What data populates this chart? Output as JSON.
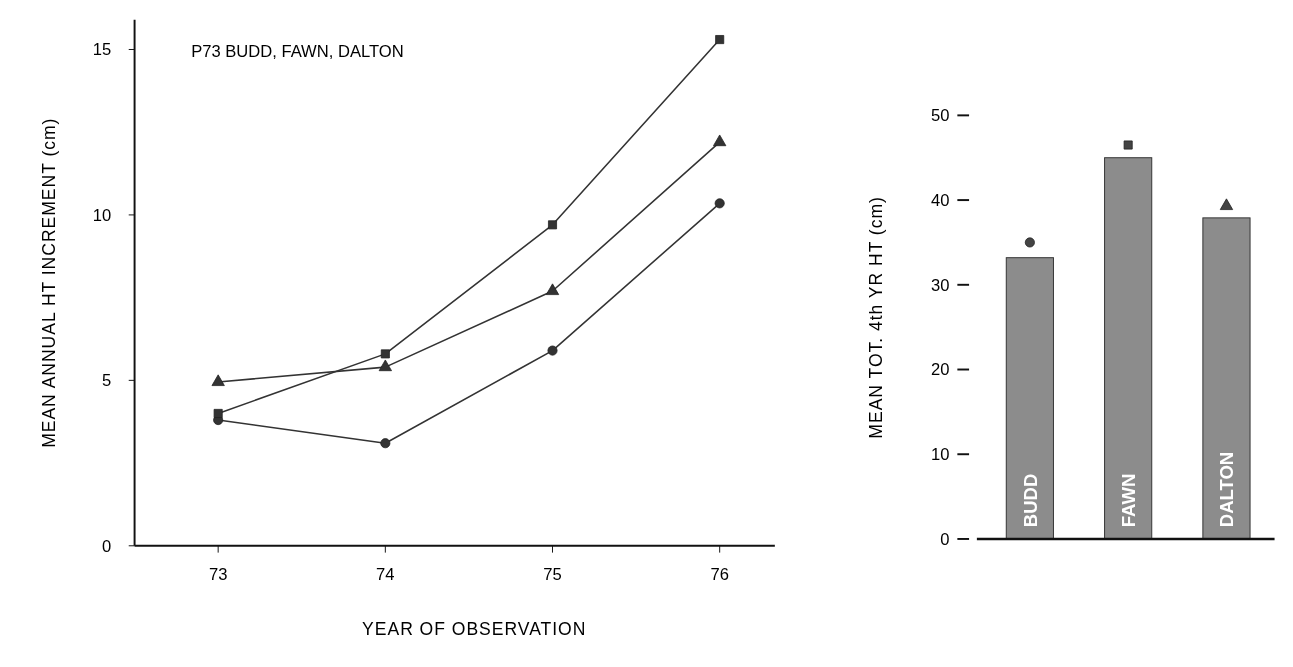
{
  "chart_data": [
    {
      "type": "line",
      "title": "P73 BUDD, FAWN, DALTON",
      "xlabel": "YEAR OF OBSERVATION",
      "ylabel": "MEAN ANNUAL HT INCREMENT (cm)",
      "x": [
        73,
        74,
        75,
        76
      ],
      "xlim": [
        72.5,
        76.33
      ],
      "xticks": [
        73,
        74,
        75,
        76
      ],
      "ylim": [
        0,
        15.9
      ],
      "yticks": [
        0,
        5,
        10,
        15
      ],
      "series": [
        {
          "color": "#333333",
          "marker": "circle",
          "values": [
            3.8,
            3.1,
            5.9,
            10.35
          ]
        },
        {
          "color": "#333333",
          "marker": "square",
          "values": [
            4.0,
            5.8,
            9.7,
            15.3
          ]
        },
        {
          "color": "#333333",
          "marker": "triangle",
          "values": [
            4.95,
            5.4,
            7.7,
            12.2
          ]
        }
      ]
    },
    {
      "type": "bar",
      "ylabel": "MEAN TOT. 4th YR HT (cm)",
      "categories": [
        "BUDD",
        "FAWN",
        "DALTON"
      ],
      "ylim": [
        0,
        50
      ],
      "yticks": [
        0,
        10,
        20,
        30,
        40,
        50
      ],
      "series": [
        {
          "color": "#8c8c8c",
          "values": [
            33.2,
            45.0,
            37.9
          ]
        },
        {
          "type": "scatter",
          "color": "#444444",
          "marker": "circle",
          "x": [
            "BUDD"
          ],
          "values": [
            35.0
          ]
        },
        {
          "type": "scatter",
          "color": "#444444",
          "marker": "square",
          "x": [
            "FAWN"
          ],
          "values": [
            46.5
          ]
        },
        {
          "type": "scatter",
          "color": "#444444",
          "marker": "triangle",
          "x": [
            "DALTON"
          ],
          "values": [
            39.3
          ]
        }
      ]
    }
  ]
}
